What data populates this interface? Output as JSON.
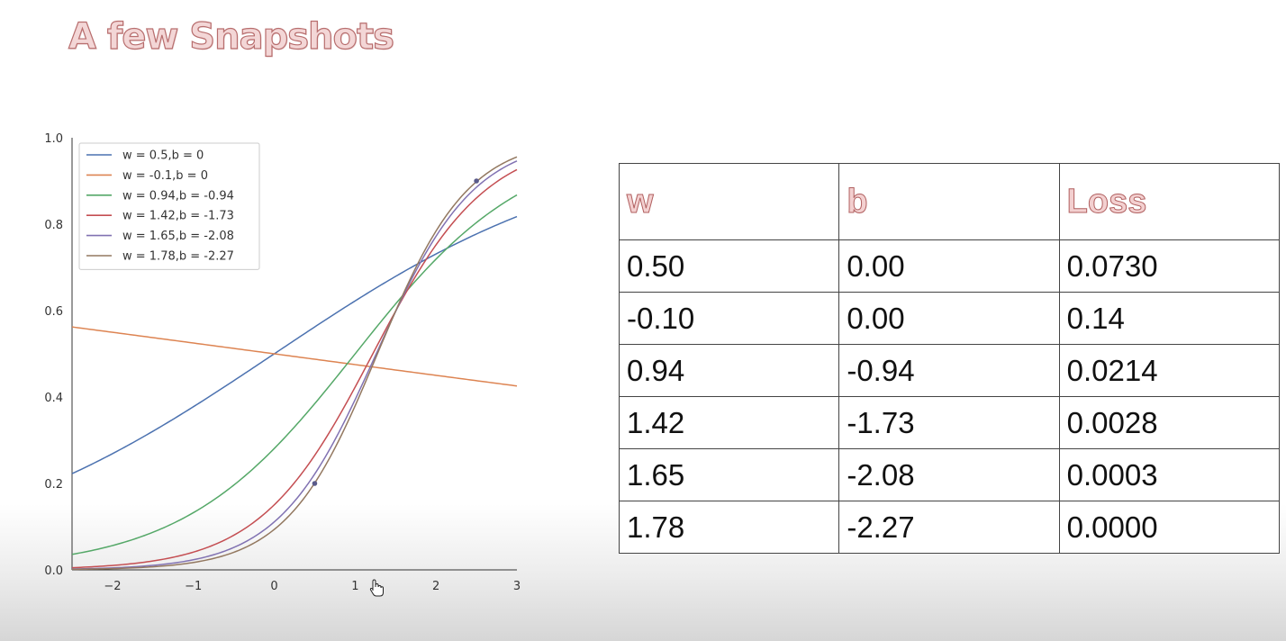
{
  "slide": {
    "title": "A few Snapshots"
  },
  "table": {
    "headers": [
      "w",
      "b",
      "Loss"
    ],
    "rows": [
      [
        "0.50",
        "0.00",
        "0.0730"
      ],
      [
        "-0.10",
        "0.00",
        "0.14"
      ],
      [
        "0.94",
        "-0.94",
        "0.0214"
      ],
      [
        "1.42",
        "-1.73",
        "0.0028"
      ],
      [
        "1.65",
        "-2.08",
        "0.0003"
      ],
      [
        "1.78",
        "-2.27",
        "0.0000"
      ]
    ]
  },
  "chart_data": {
    "type": "line",
    "title": "",
    "xlabel": "",
    "ylabel": "",
    "xlim": [
      -2.5,
      3
    ],
    "ylim": [
      0,
      1
    ],
    "xticks": [
      -2,
      -1,
      0,
      1,
      2,
      3
    ],
    "xtick_labels": [
      "−2",
      "−1",
      "0",
      "1",
      "2",
      "3"
    ],
    "yticks": [
      0,
      0.2,
      0.4,
      0.6,
      0.8,
      1.0
    ],
    "ytick_labels": [
      "0.0",
      "0.2",
      "0.4",
      "0.6",
      "0.8",
      "1.0"
    ],
    "grid": false,
    "legend_position": "top-left",
    "series": [
      {
        "name": "w = 0.5,b = 0",
        "w": 0.5,
        "b": 0,
        "color": "#4c72b0"
      },
      {
        "name": "w = -0.1,b = 0",
        "w": -0.1,
        "b": 0,
        "color": "#dd8452"
      },
      {
        "name": "w = 0.94,b = -0.94",
        "w": 0.94,
        "b": -0.94,
        "color": "#55a868"
      },
      {
        "name": "w = 1.42,b = -1.73",
        "w": 1.42,
        "b": -1.73,
        "color": "#c44e52"
      },
      {
        "name": "w = 1.65,b = -2.08",
        "w": 1.65,
        "b": -2.08,
        "color": "#8172b2"
      },
      {
        "name": "w = 1.78,b = -2.27",
        "w": 1.78,
        "b": -2.27,
        "color": "#937860"
      }
    ],
    "points": [
      {
        "x": 0.5,
        "y": 0.2
      },
      {
        "x": 2.5,
        "y": 0.9
      }
    ]
  }
}
